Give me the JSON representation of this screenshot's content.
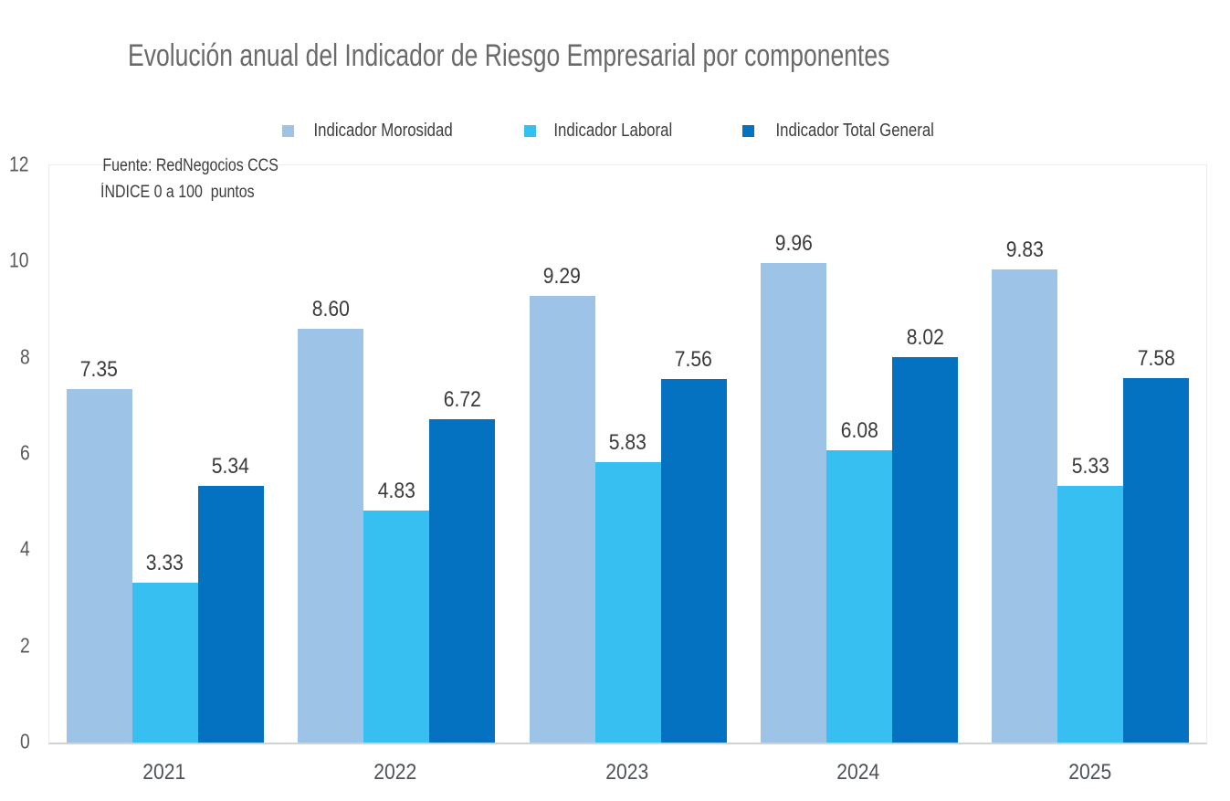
{
  "title": "Evolución anual del Indicador de Riesgo Empresarial por componentes",
  "source_note": {
    "line1": "Fuente: RedNegocios CCS",
    "line2": "ÍNDICE 0 a 100  puntos"
  },
  "chart_data": {
    "type": "bar",
    "title": "Evolución anual del Indicador de Riesgo Empresarial por componentes",
    "categories": [
      "2021",
      "2022",
      "2023",
      "2024",
      "2025"
    ],
    "series": [
      {
        "name": "Indicador Morosidad",
        "color": "#9DC3E6",
        "values": [
          7.35,
          8.6,
          9.29,
          9.96,
          9.83
        ]
      },
      {
        "name": "Indicador Laboral",
        "color": "#36BFF0",
        "values": [
          3.33,
          4.83,
          5.83,
          6.08,
          5.33
        ]
      },
      {
        "name": "Indicador Total General",
        "color": "#0572C1",
        "values": [
          5.34,
          6.72,
          7.56,
          8.02,
          7.58
        ]
      }
    ],
    "xlabel": "",
    "ylabel": "",
    "ylim": [
      0,
      12
    ],
    "yticks": [
      0,
      2,
      4,
      6,
      8,
      10,
      12
    ],
    "grid": false,
    "legend_position": "top",
    "value_labels": true,
    "value_label_format": "2-decimals",
    "annotations": [
      "Fuente: RedNegocios CCS",
      "ÍNDICE 0 a 100  puntos"
    ],
    "text_color": "#595959",
    "plot_border_color": "#ececec",
    "axis_line_color": "#d2d2d2"
  }
}
